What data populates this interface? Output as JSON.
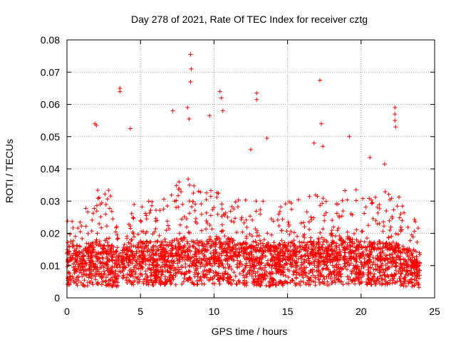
{
  "chart_data": {
    "type": "scatter",
    "title": "Day 278 of 2021, Rate Of TEC Index for receiver cztg",
    "xlabel": "GPS time / hours",
    "ylabel": "ROTI / TECUs",
    "xlim": [
      0,
      25
    ],
    "ylim": [
      0,
      0.08
    ],
    "xticks": [
      0,
      5,
      10,
      15,
      20,
      25
    ],
    "xtick_labels": [
      "0",
      "5",
      "10",
      "15",
      "20",
      "25"
    ],
    "yticks": [
      0,
      0.01,
      0.02,
      0.03,
      0.04,
      0.05,
      0.06,
      0.07,
      0.08
    ],
    "ytick_labels": [
      "0",
      "0.01",
      "0.02",
      "0.03",
      "0.04",
      "0.05",
      "0.06",
      "0.07",
      "0.08"
    ],
    "grid": true,
    "marker": "+",
    "color": "#ff0000",
    "data_range_x": [
      0,
      24
    ],
    "outliers": [
      {
        "x": 3.6,
        "y": 0.065
      },
      {
        "x": 3.6,
        "y": 0.064
      },
      {
        "x": 8.4,
        "y": 0.0755
      },
      {
        "x": 8.45,
        "y": 0.071
      },
      {
        "x": 8.4,
        "y": 0.067
      },
      {
        "x": 10.4,
        "y": 0.064
      },
      {
        "x": 10.5,
        "y": 0.062
      },
      {
        "x": 12.9,
        "y": 0.0635
      },
      {
        "x": 12.9,
        "y": 0.0615
      },
      {
        "x": 17.2,
        "y": 0.0675
      },
      {
        "x": 17.3,
        "y": 0.054
      },
      {
        "x": 22.3,
        "y": 0.059
      },
      {
        "x": 22.3,
        "y": 0.057
      },
      {
        "x": 22.3,
        "y": 0.055
      },
      {
        "x": 22.35,
        "y": 0.053
      },
      {
        "x": 7.2,
        "y": 0.058
      },
      {
        "x": 1.9,
        "y": 0.054
      },
      {
        "x": 2.0,
        "y": 0.0535
      },
      {
        "x": 4.3,
        "y": 0.0525
      },
      {
        "x": 9.7,
        "y": 0.0565
      },
      {
        "x": 10.6,
        "y": 0.058
      },
      {
        "x": 8.2,
        "y": 0.059
      },
      {
        "x": 8.3,
        "y": 0.0555
      },
      {
        "x": 13.6,
        "y": 0.0495
      },
      {
        "x": 19.2,
        "y": 0.05
      },
      {
        "x": 16.8,
        "y": 0.048
      },
      {
        "x": 17.4,
        "y": 0.047
      },
      {
        "x": 20.6,
        "y": 0.0435
      },
      {
        "x": 21.6,
        "y": 0.0415
      },
      {
        "x": 12.5,
        "y": 0.046
      }
    ],
    "envelope": [
      {
        "x": 0,
        "median": 0.011,
        "max": 0.025
      },
      {
        "x": 1,
        "median": 0.01,
        "max": 0.027
      },
      {
        "x": 2,
        "median": 0.011,
        "max": 0.035
      },
      {
        "x": 3,
        "median": 0.01,
        "max": 0.033
      },
      {
        "x": 3.7,
        "median": 0.009,
        "max": 0.02
      },
      {
        "x": 4,
        "median": 0.012,
        "max": 0.03
      },
      {
        "x": 5,
        "median": 0.011,
        "max": 0.03
      },
      {
        "x": 6,
        "median": 0.011,
        "max": 0.03
      },
      {
        "x": 7,
        "median": 0.011,
        "max": 0.033
      },
      {
        "x": 8,
        "median": 0.012,
        "max": 0.038
      },
      {
        "x": 9,
        "median": 0.011,
        "max": 0.034
      },
      {
        "x": 10,
        "median": 0.012,
        "max": 0.036
      },
      {
        "x": 11,
        "median": 0.012,
        "max": 0.033
      },
      {
        "x": 12,
        "median": 0.011,
        "max": 0.031
      },
      {
        "x": 13,
        "median": 0.011,
        "max": 0.032
      },
      {
        "x": 14,
        "median": 0.01,
        "max": 0.028
      },
      {
        "x": 15,
        "median": 0.011,
        "max": 0.03
      },
      {
        "x": 16,
        "median": 0.011,
        "max": 0.031
      },
      {
        "x": 17,
        "median": 0.011,
        "max": 0.033
      },
      {
        "x": 18,
        "median": 0.011,
        "max": 0.03
      },
      {
        "x": 19,
        "median": 0.012,
        "max": 0.035
      },
      {
        "x": 20,
        "median": 0.011,
        "max": 0.034
      },
      {
        "x": 21,
        "median": 0.011,
        "max": 0.032
      },
      {
        "x": 22,
        "median": 0.011,
        "max": 0.034
      },
      {
        "x": 23,
        "median": 0.01,
        "max": 0.03
      },
      {
        "x": 24,
        "median": 0.009,
        "max": 0.022
      }
    ],
    "bulk_point_count": 3200
  }
}
